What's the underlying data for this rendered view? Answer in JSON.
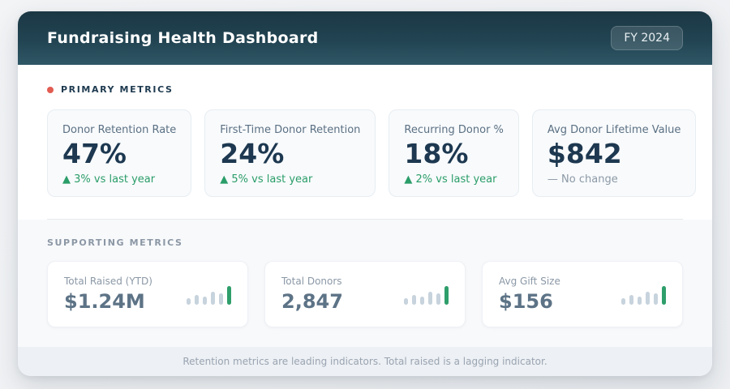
{
  "header": {
    "title": "Fundraising Health Dashboard",
    "badge": "FY 2024"
  },
  "primary": {
    "section_label": "PRIMARY METRICS",
    "cards": [
      {
        "label": "Donor Retention Rate",
        "value": "47%",
        "delta": "▲ 3% vs last year",
        "delta_type": "up"
      },
      {
        "label": "First-Time Donor Retention",
        "value": "24%",
        "delta": "▲ 5% vs last year",
        "delta_type": "up"
      },
      {
        "label": "Recurring Donor %",
        "value": "18%",
        "delta": "▲ 2% vs last year",
        "delta_type": "up"
      },
      {
        "label": "Avg Donor Lifetime Value",
        "value": "$842",
        "delta": "— No change",
        "delta_type": "neutral"
      }
    ]
  },
  "supporting": {
    "section_label": "SUPPORTING METRICS",
    "cards": [
      {
        "label": "Total Raised (YTD)",
        "value": "$1.24M"
      },
      {
        "label": "Total Donors",
        "value": "2,847"
      },
      {
        "label": "Avg Gift Size",
        "value": "$156"
      }
    ],
    "sparkline": {
      "bars": [
        8,
        12,
        10,
        16,
        14,
        23
      ],
      "bar_color": "#c7d3dd",
      "accent_color": "#2e9e6b"
    }
  },
  "footer": {
    "note": "Retention metrics are leading indicators. Total raised is a lagging indicator."
  },
  "colors": {
    "header_gradient_top": "#1b3744",
    "header_gradient_bottom": "#2f5766",
    "accent_red": "#e25c52",
    "positive_green": "#2a9d68",
    "primary_value": "#1d3850",
    "supporting_value": "#5d7386"
  }
}
